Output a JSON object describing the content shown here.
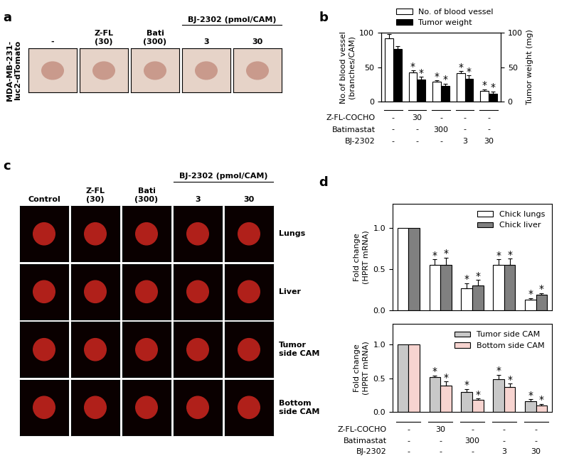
{
  "panel_labels": [
    "a",
    "b",
    "c",
    "d"
  ],
  "image_panels": [
    {
      "columns": [
        "-",
        "Z-FL\n(30)",
        "Bati\n(300)",
        "3",
        "30"
      ],
      "column_group": "BJ-2302 (pmol/CAM)",
      "rows": [
        "MDA-MB-231-\nluc2-dTomato"
      ]
    },
    {
      "columns": [
        "Control",
        "Z-FL\n(30)",
        "Bati\n(300)",
        "3",
        "30"
      ],
      "column_group": "BJ-2302 (pmol/CAM)",
      "rows": [
        "Lungs",
        "Liver",
        "Tumor\nside CAM",
        "Bottom\nside CAM"
      ]
    }
  ],
  "chart_data": [
    {
      "type": "bar",
      "categories": [
        null,
        null,
        null,
        null,
        null
      ],
      "ylabel": "No.of blood vessel\n(branches/CAM)",
      "y2label": "Tumor weight (mg)",
      "ylim": [
        0,
        100
      ],
      "yticks": [
        0,
        50,
        100
      ],
      "y2lim": [
        0,
        100
      ],
      "y2ticks": [
        0,
        50,
        100
      ],
      "legend": "upper right",
      "annotation": "*",
      "series": [
        {
          "name": "No. of blood vessel",
          "color": "#ffffff",
          "values": [
            91,
            42,
            29,
            41,
            16
          ],
          "error": [
            7,
            3,
            2,
            3,
            2
          ],
          "significant": [
            false,
            true,
            true,
            true,
            true
          ]
        },
        {
          "name": "Tumor weight",
          "color": "#000000",
          "axis": "y2",
          "values": [
            76,
            32,
            23,
            33,
            12
          ],
          "error": [
            4,
            4,
            3,
            5,
            3
          ],
          "significant": [
            false,
            true,
            true,
            true,
            true
          ]
        }
      ],
      "treatments": [
        {
          "name": "Z-FL-COCHO",
          "values": [
            "-",
            "30",
            "-",
            "-",
            "-"
          ]
        },
        {
          "name": "Batimastat",
          "values": [
            "-",
            "-",
            "300",
            "-",
            "-"
          ]
        },
        {
          "name": "BJ-2302",
          "values": [
            "-",
            "-",
            "-",
            "3",
            "30"
          ]
        }
      ]
    },
    {
      "type": "bar",
      "categories": [
        null,
        null,
        null,
        null,
        null
      ],
      "ylabel": "Fold change\n(HPRT mRNA)",
      "ylim": [
        0,
        1.3
      ],
      "yticks": [
        0.0,
        0.5,
        1.0
      ],
      "legend": "upper right",
      "annotation": "*",
      "series": [
        {
          "name": "Chick lungs",
          "color": "#ffffff",
          "values": [
            1.0,
            0.55,
            0.27,
            0.55,
            0.13
          ],
          "error": [
            null,
            0.07,
            0.06,
            0.07,
            0.02
          ],
          "significant": [
            false,
            true,
            true,
            true,
            true
          ]
        },
        {
          "name": "Chick liver",
          "color": "#808080",
          "values": [
            1.0,
            0.55,
            0.3,
            0.55,
            0.19
          ],
          "error": [
            null,
            0.09,
            0.07,
            0.08,
            0.02
          ],
          "significant": [
            false,
            true,
            true,
            true,
            true
          ]
        }
      ]
    },
    {
      "type": "bar",
      "categories": [
        null,
        null,
        null,
        null,
        null
      ],
      "ylabel": "Fold change\n(HPRT mRNA)",
      "ylim": [
        0,
        1.3
      ],
      "yticks": [
        0.0,
        0.5,
        1.0
      ],
      "legend": "upper right",
      "annotation": "*",
      "series": [
        {
          "name": "Tumor side CAM",
          "color": "#c8c8c8",
          "values": [
            1.0,
            0.52,
            0.3,
            0.49,
            0.16
          ],
          "error": [
            null,
            0.02,
            0.04,
            0.06,
            0.03
          ],
          "significant": [
            false,
            true,
            true,
            true,
            true
          ]
        },
        {
          "name": "Bottom side CAM",
          "color": "#f7d4d0",
          "values": [
            1.0,
            0.39,
            0.18,
            0.37,
            0.1
          ],
          "error": [
            null,
            0.06,
            0.02,
            0.05,
            0.02
          ],
          "significant": [
            false,
            true,
            true,
            true,
            true
          ]
        }
      ],
      "treatments": [
        {
          "name": "Z-FL-COCHO",
          "values": [
            "-",
            "30",
            "-",
            "-",
            "-"
          ]
        },
        {
          "name": "Batimastat",
          "values": [
            "-",
            "-",
            "300",
            "-",
            "-"
          ]
        },
        {
          "name": "BJ-2302",
          "values": [
            "-",
            "-",
            "-",
            "3",
            "30"
          ]
        }
      ]
    }
  ]
}
